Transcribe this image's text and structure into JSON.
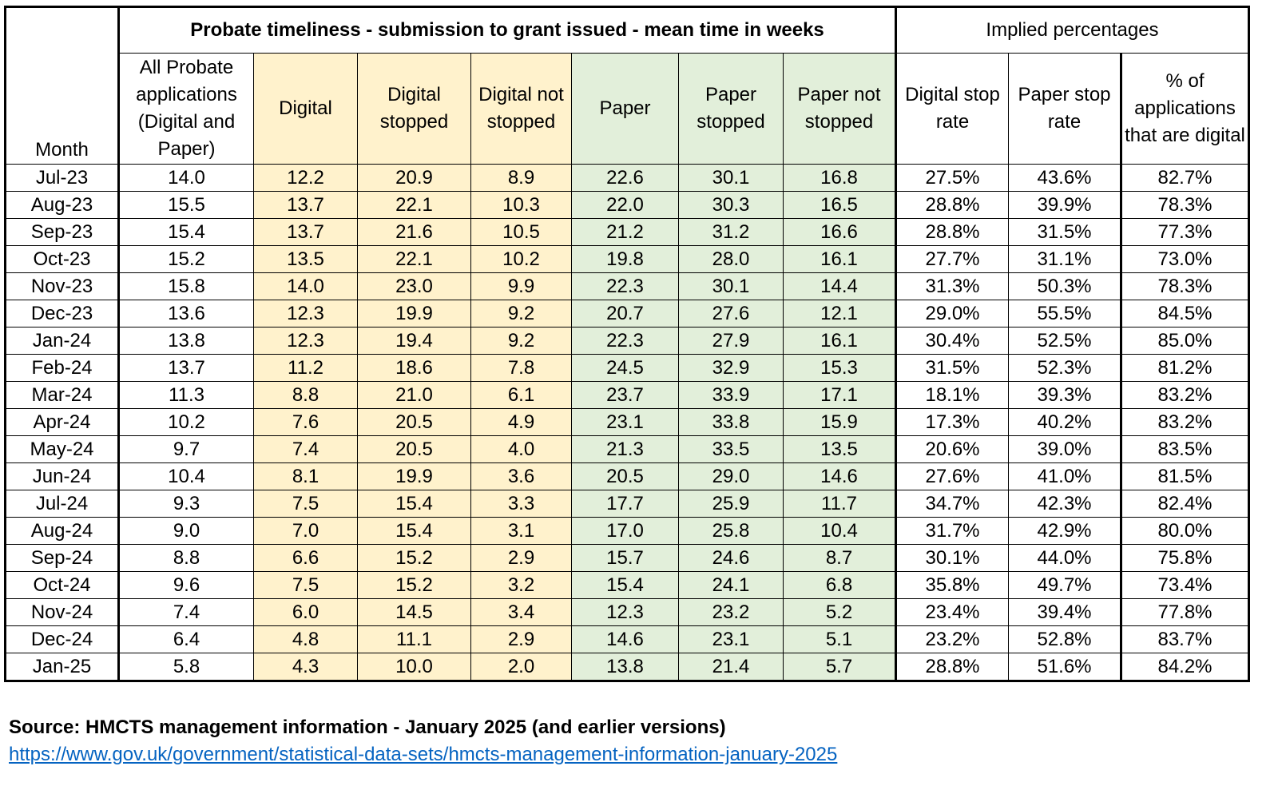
{
  "header": {
    "month": "Month",
    "groups": [
      "Probate timeliness - submission to grant issued - mean time in weeks",
      "Implied percentages"
    ],
    "columns": [
      "All Probate applications (Digital and Paper)",
      "Digital",
      "Digital stopped",
      "Digital not stopped",
      "Paper",
      "Paper stopped",
      "Paper not stopped",
      "Digital stop rate",
      "Paper stop rate",
      "% of applications that are digital"
    ]
  },
  "table": {
    "rows": [
      [
        "Jul-23",
        "14.0",
        "12.2",
        "20.9",
        "8.9",
        "22.6",
        "30.1",
        "16.8",
        "27.5%",
        "43.6%",
        "82.7%"
      ],
      [
        "Aug-23",
        "15.5",
        "13.7",
        "22.1",
        "10.3",
        "22.0",
        "30.3",
        "16.5",
        "28.8%",
        "39.9%",
        "78.3%"
      ],
      [
        "Sep-23",
        "15.4",
        "13.7",
        "21.6",
        "10.5",
        "21.2",
        "31.2",
        "16.6",
        "28.8%",
        "31.5%",
        "77.3%"
      ],
      [
        "Oct-23",
        "15.2",
        "13.5",
        "22.1",
        "10.2",
        "19.8",
        "28.0",
        "16.1",
        "27.7%",
        "31.1%",
        "73.0%"
      ],
      [
        "Nov-23",
        "15.8",
        "14.0",
        "23.0",
        "9.9",
        "22.3",
        "30.1",
        "14.4",
        "31.3%",
        "50.3%",
        "78.3%"
      ],
      [
        "Dec-23",
        "13.6",
        "12.3",
        "19.9",
        "9.2",
        "20.7",
        "27.6",
        "12.1",
        "29.0%",
        "55.5%",
        "84.5%"
      ],
      [
        "Jan-24",
        "13.8",
        "12.3",
        "19.4",
        "9.2",
        "22.3",
        "27.9",
        "16.1",
        "30.4%",
        "52.5%",
        "85.0%"
      ],
      [
        "Feb-24",
        "13.7",
        "11.2",
        "18.6",
        "7.8",
        "24.5",
        "32.9",
        "15.3",
        "31.5%",
        "52.3%",
        "81.2%"
      ],
      [
        "Mar-24",
        "11.3",
        "8.8",
        "21.0",
        "6.1",
        "23.7",
        "33.9",
        "17.1",
        "18.1%",
        "39.3%",
        "83.2%"
      ],
      [
        "Apr-24",
        "10.2",
        "7.6",
        "20.5",
        "4.9",
        "23.1",
        "33.8",
        "15.9",
        "17.3%",
        "40.2%",
        "83.2%"
      ],
      [
        "May-24",
        "9.7",
        "7.4",
        "20.5",
        "4.0",
        "21.3",
        "33.5",
        "13.5",
        "20.6%",
        "39.0%",
        "83.5%"
      ],
      [
        "Jun-24",
        "10.4",
        "8.1",
        "19.9",
        "3.6",
        "20.5",
        "29.0",
        "14.6",
        "27.6%",
        "41.0%",
        "81.5%"
      ],
      [
        "Jul-24",
        "9.3",
        "7.5",
        "15.4",
        "3.3",
        "17.7",
        "25.9",
        "11.7",
        "34.7%",
        "42.3%",
        "82.4%"
      ],
      [
        "Aug-24",
        "9.0",
        "7.0",
        "15.4",
        "3.1",
        "17.0",
        "25.8",
        "10.4",
        "31.7%",
        "42.9%",
        "80.0%"
      ],
      [
        "Sep-24",
        "8.8",
        "6.6",
        "15.2",
        "2.9",
        "15.7",
        "24.6",
        "8.7",
        "30.1%",
        "44.0%",
        "75.8%"
      ],
      [
        "Oct-24",
        "9.6",
        "7.5",
        "15.2",
        "3.2",
        "15.4",
        "24.1",
        "6.8",
        "35.8%",
        "49.7%",
        "73.4%"
      ],
      [
        "Nov-24",
        "7.4",
        "6.0",
        "14.5",
        "3.4",
        "12.3",
        "23.2",
        "5.2",
        "23.4%",
        "39.4%",
        "77.8%"
      ],
      [
        "Dec-24",
        "6.4",
        "4.8",
        "11.1",
        "2.9",
        "14.6",
        "23.1",
        "5.1",
        "23.2%",
        "52.8%",
        "83.7%"
      ],
      [
        "Jan-25",
        "5.8",
        "4.3",
        "10.0",
        "2.0",
        "13.8",
        "21.4",
        "5.7",
        "28.8%",
        "51.6%",
        "84.2%"
      ]
    ]
  },
  "source": {
    "text": "Source: HMCTS management information - January 2025 (and earlier versions)",
    "link": "https://www.gov.uk/government/statistical-data-sets/hmcts-management-information-january-2025"
  }
}
